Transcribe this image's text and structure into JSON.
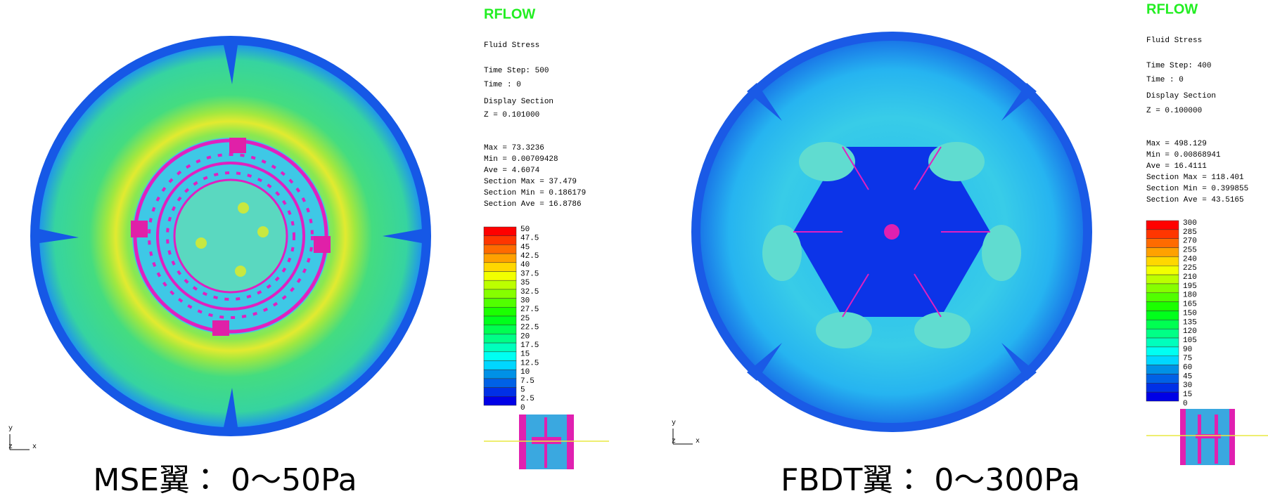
{
  "panels": [
    {
      "header": "RFLOW",
      "quantity": "Fluid Stress",
      "time_step": "Time Step: 500",
      "time": "Time      : 0",
      "section_label": "Display Section",
      "section": "Z = 0.101000",
      "stats": [
        "Max = 73.3236",
        "Min = 0.00709428",
        "Ave = 4.6074",
        "Section Max = 37.479",
        "Section Min = 0.186179",
        "Section Ave = 16.8786"
      ],
      "colorbar": [
        "50",
        "47.5",
        "45",
        "42.5",
        "40",
        "37.5",
        "35",
        "32.5",
        "30",
        "27.5",
        "25",
        "22.5",
        "20",
        "17.5",
        "15",
        "12.5",
        "10",
        "7.5",
        "5",
        "2.5",
        "0"
      ],
      "axes": {
        "y": "y",
        "z": "z",
        "x": "x"
      },
      "caption": "MSE翼： 0～50Pa"
    },
    {
      "header": "RFLOW",
      "quantity": "Fluid Stress",
      "time_step": "Time Step: 400",
      "time": "Time      : 0",
      "section_label": "Display Section",
      "section": "Z = 0.100000",
      "stats": [
        "Max = 498.129",
        "Min = 0.00868941",
        "Ave = 16.4111",
        "Section Max = 118.401",
        "Section Min = 0.399855",
        "Section Ave = 43.5165"
      ],
      "colorbar": [
        "300",
        "285",
        "270",
        "255",
        "240",
        "225",
        "210",
        "195",
        "180",
        "165",
        "150",
        "135",
        "120",
        "105",
        "90",
        "75",
        "60",
        "45",
        "30",
        "15",
        "0"
      ],
      "axes": {
        "y": "y",
        "z": "z",
        "x": "x"
      },
      "caption": "FBDT翼： 0～300Pa"
    }
  ]
}
